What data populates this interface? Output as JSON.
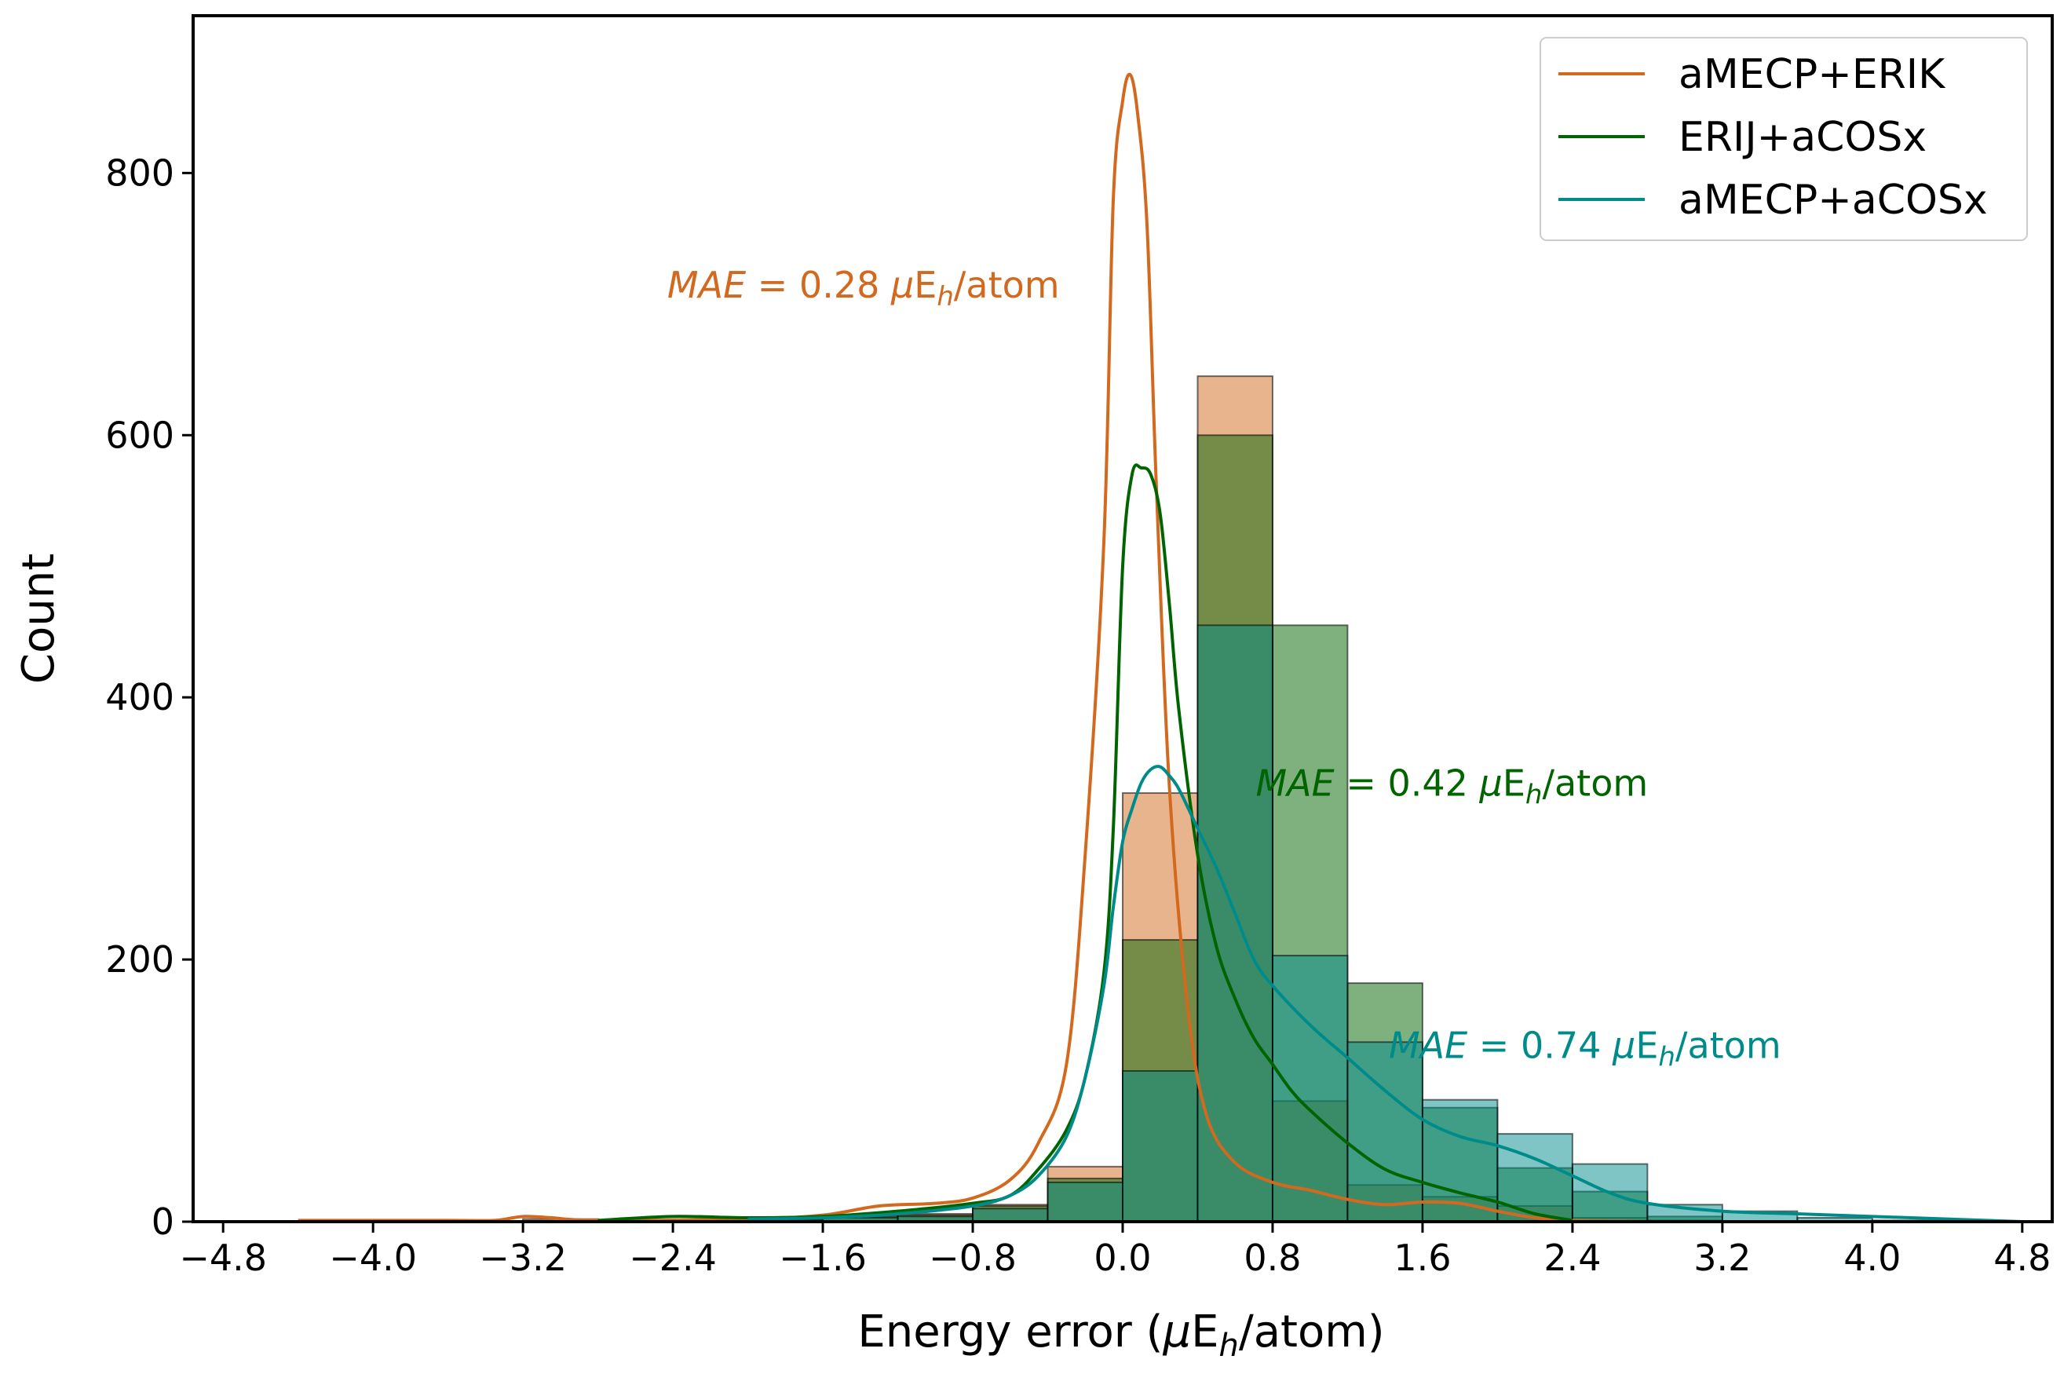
{
  "chart_data": {
    "type": "bar",
    "xlabel_prefix": "Energy error (",
    "xlabel_mu": "μ",
    "xlabel_E": "E",
    "xlabel_sub": "h",
    "xlabel_suffix": "/atom)",
    "ylabel": "Count",
    "xlim": [
      -4.96,
      4.96
    ],
    "ylim": [
      0,
      920
    ],
    "x_ticks": [
      -4.8,
      -4.0,
      -3.2,
      -2.4,
      -1.6,
      -0.8,
      0.0,
      0.8,
      1.6,
      2.4,
      3.2,
      4.0,
      4.8
    ],
    "x_tick_labels": [
      "−4.8",
      "−4.0",
      "−3.2",
      "−2.4",
      "−1.6",
      "−0.8",
      "0.0",
      "0.8",
      "1.6",
      "2.4",
      "3.2",
      "4.0",
      "4.8"
    ],
    "y_ticks": [
      0,
      200,
      400,
      600,
      800
    ],
    "y_tick_labels": [
      "0",
      "200",
      "400",
      "600",
      "800"
    ],
    "grid": false,
    "legend_position": "top-right",
    "bin_edges": [
      -4.8,
      -4.4,
      -4.0,
      -3.6,
      -3.2,
      -2.8,
      -2.4,
      -2.0,
      -1.6,
      -1.2,
      -0.8,
      -0.4,
      0.0,
      0.4,
      0.8,
      1.2,
      1.6,
      2.0,
      2.4,
      2.8,
      3.2,
      3.6,
      4.0,
      4.4,
      4.8
    ],
    "series": [
      {
        "name": "aMECP+ERIK",
        "color": "#d2691e",
        "counts": [
          0,
          0,
          0,
          0,
          2,
          0,
          1,
          2,
          5,
          6,
          13,
          42,
          327,
          645,
          92,
          28,
          19,
          12,
          3,
          1,
          0,
          0,
          0,
          0
        ],
        "kde_x": [
          -4.4,
          -3.6,
          -3.35,
          -3.2,
          -3.05,
          -2.8,
          -2.0,
          -1.6,
          -1.3,
          -1.0,
          -0.8,
          -0.6,
          -0.45,
          -0.3,
          -0.2,
          -0.1,
          -0.05,
          0.0,
          0.04,
          0.08,
          0.13,
          0.18,
          0.25,
          0.35,
          0.45,
          0.6,
          0.8,
          1.0,
          1.2,
          1.4,
          1.6,
          1.8,
          2.0,
          2.2,
          2.4,
          2.8
        ],
        "kde_y": [
          1,
          1,
          1,
          4,
          3,
          1,
          2,
          5,
          12,
          14,
          18,
          32,
          60,
          120,
          280,
          520,
          780,
          855,
          875,
          845,
          760,
          560,
          330,
          160,
          80,
          45,
          30,
          24,
          17,
          13,
          15,
          14,
          8,
          3,
          1,
          0
        ]
      },
      {
        "name": "ERIJ+aCOSx",
        "color": "#006400",
        "counts": [
          0,
          0,
          0,
          0,
          0,
          0,
          1,
          2,
          4,
          5,
          12,
          33,
          215,
          600,
          455,
          182,
          87,
          41,
          23,
          4,
          0,
          0,
          0,
          0
        ],
        "kde_x": [
          -2.8,
          -2.4,
          -2.0,
          -1.6,
          -1.2,
          -0.8,
          -0.6,
          -0.45,
          -0.3,
          -0.2,
          -0.1,
          -0.05,
          0.0,
          0.05,
          0.1,
          0.15,
          0.2,
          0.25,
          0.3,
          0.4,
          0.5,
          0.6,
          0.7,
          0.8,
          0.9,
          1.0,
          1.2,
          1.4,
          1.6,
          1.8,
          2.0,
          2.2,
          2.4
        ],
        "kde_y": [
          1,
          4,
          3,
          4,
          8,
          14,
          20,
          40,
          70,
          110,
          190,
          300,
          500,
          570,
          575,
          570,
          540,
          470,
          390,
          280,
          210,
          170,
          140,
          120,
          100,
          85,
          60,
          40,
          30,
          22,
          15,
          6,
          1
        ]
      },
      {
        "name": "aMECP+aCOSx",
        "color": "#008b8b",
        "counts": [
          0,
          0,
          0,
          0,
          0,
          0,
          0,
          1,
          3,
          4,
          10,
          30,
          115,
          455,
          203,
          137,
          93,
          67,
          44,
          13,
          8,
          3,
          1,
          0
        ],
        "kde_x": [
          -2.0,
          -1.6,
          -1.2,
          -0.8,
          -0.6,
          -0.45,
          -0.3,
          -0.2,
          -0.1,
          -0.05,
          0.0,
          0.05,
          0.1,
          0.15,
          0.2,
          0.25,
          0.3,
          0.4,
          0.5,
          0.6,
          0.7,
          0.8,
          1.0,
          1.2,
          1.4,
          1.6,
          1.8,
          2.0,
          2.2,
          2.4,
          2.6,
          2.8,
          3.2,
          3.6,
          4.0,
          4.4,
          4.8
        ],
        "kde_y": [
          2,
          3,
          6,
          12,
          20,
          35,
          65,
          110,
          180,
          240,
          290,
          315,
          335,
          345,
          347,
          340,
          330,
          300,
          270,
          235,
          200,
          180,
          150,
          125,
          100,
          78,
          65,
          58,
          48,
          35,
          22,
          14,
          8,
          6,
          4,
          2,
          0
        ]
      }
    ],
    "annotations": [
      {
        "series": "aMECP+ERIK",
        "label_italic": "MAE",
        "eq": " = ",
        "value": "0.28",
        "mu": "μ",
        "E": "E",
        "sub": "h",
        "suffix": "/atom",
        "color": "#d2691e",
        "at_x": -2.43,
        "at_y": 705
      },
      {
        "series": "ERIJ+aCOSx",
        "label_italic": "MAE",
        "eq": " = ",
        "value": "0.42",
        "mu": "μ",
        "E": "E",
        "sub": "h",
        "suffix": "/atom",
        "color": "#006400",
        "at_x": 0.71,
        "at_y": 325
      },
      {
        "series": "aMECP+aCOSx",
        "label_italic": "MAE",
        "eq": " = ",
        "value": "0.74",
        "mu": "μ",
        "E": "E",
        "sub": "h",
        "suffix": "/atom",
        "color": "#008b8b",
        "at_x": 1.42,
        "at_y": 125
      }
    ]
  }
}
